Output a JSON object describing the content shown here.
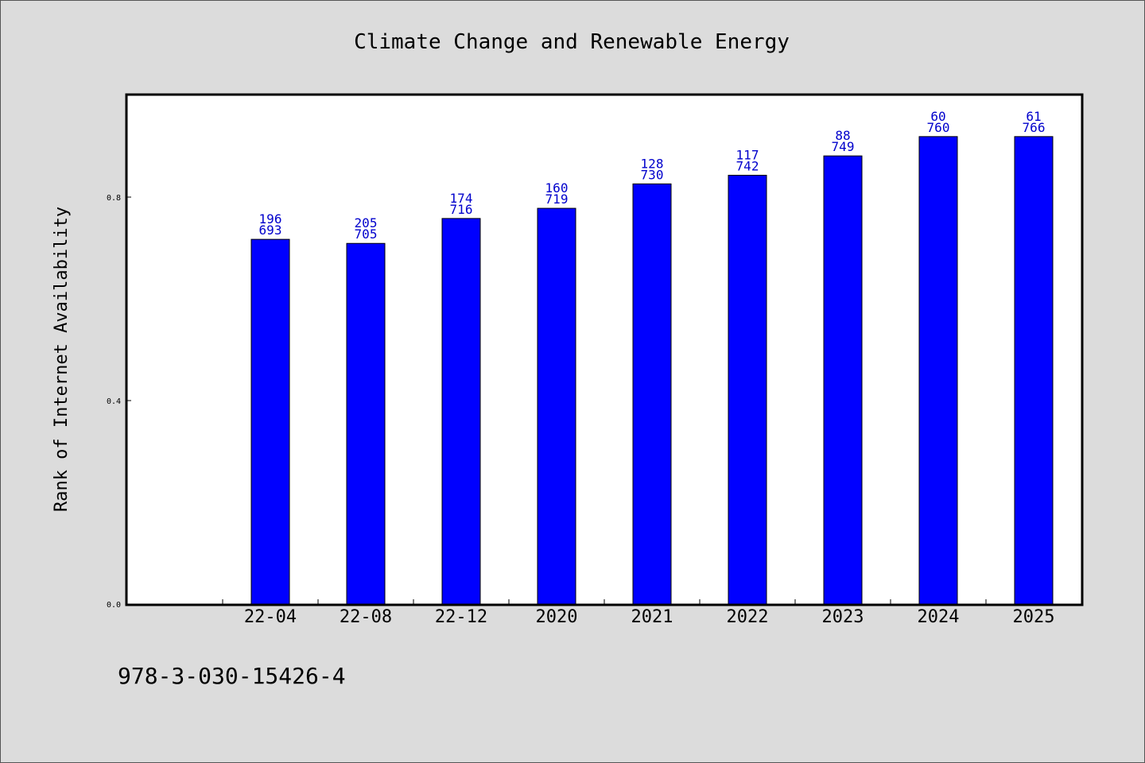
{
  "chart_data": {
    "type": "bar",
    "title": "Climate Change and Renewable Energy",
    "xlabel": "",
    "ylabel": "Rank of Internet Availability",
    "categories": [
      "22-04",
      "22-08",
      "22-12",
      "2020",
      "2021",
      "2022",
      "2023",
      "2024",
      "2025"
    ],
    "values": [
      0.717,
      0.709,
      0.758,
      0.778,
      0.826,
      0.843,
      0.881,
      0.919,
      0.919
    ],
    "labels_top": [
      "196",
      "205",
      "174",
      "160",
      "128",
      "117",
      "88",
      "60",
      "61"
    ],
    "labels_bottom": [
      "693",
      "705",
      "716",
      "719",
      "730",
      "742",
      "749",
      "760",
      "766"
    ],
    "yticks": [
      "0.0",
      "0.4",
      "0.8"
    ],
    "ylim": [
      0,
      1.0
    ],
    "grid": false,
    "bar_color": "#0000ff",
    "label_color": "#0000cc"
  },
  "footer": {
    "isbn": "978-3-030-15426-4"
  }
}
